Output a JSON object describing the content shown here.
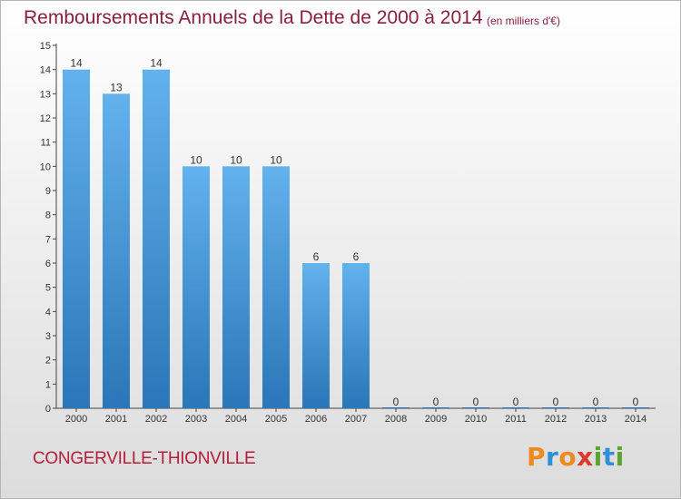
{
  "title": "Remboursements Annuels de la Dette de 2000 à 2014",
  "subtitle": "(en milliers d'€)",
  "city": "CONGERVILLE-THIONVILLE",
  "logo": {
    "letters": [
      "P",
      "r",
      "o",
      "x",
      "i",
      "t",
      "i"
    ],
    "colors": [
      "#f08a1e",
      "#2f8fd8",
      "#f08a1e",
      "#d93b2b",
      "#5aa52e",
      "#2f8fd8",
      "#5aa52e"
    ]
  },
  "colors": {
    "bar_light": "#62b2ee",
    "bar_dark": "#2a76b8",
    "text": "#333333"
  },
  "chart_data": {
    "type": "bar",
    "title": "Remboursements Annuels de la Dette de 2000 à 2014",
    "subtitle": "(en milliers d'€)",
    "xlabel": "",
    "ylabel": "",
    "categories": [
      "2000",
      "2001",
      "2002",
      "2003",
      "2004",
      "2005",
      "2006",
      "2007",
      "2008",
      "2009",
      "2010",
      "2011",
      "2012",
      "2013",
      "2014"
    ],
    "values": [
      14,
      13,
      14,
      10,
      10,
      10,
      6,
      6,
      0,
      0,
      0,
      0,
      0,
      0,
      0
    ],
    "data_labels": [
      "14",
      "13",
      "14",
      "10",
      "10",
      "10",
      "6",
      "6",
      "0",
      "0",
      "0",
      "0",
      "0",
      "0",
      "0"
    ],
    "yticks": [
      0,
      1,
      2,
      3,
      4,
      5,
      6,
      7,
      8,
      9,
      10,
      11,
      12,
      13,
      14,
      15
    ],
    "ylim": [
      0,
      15
    ],
    "grid": false,
    "legend": "none"
  }
}
